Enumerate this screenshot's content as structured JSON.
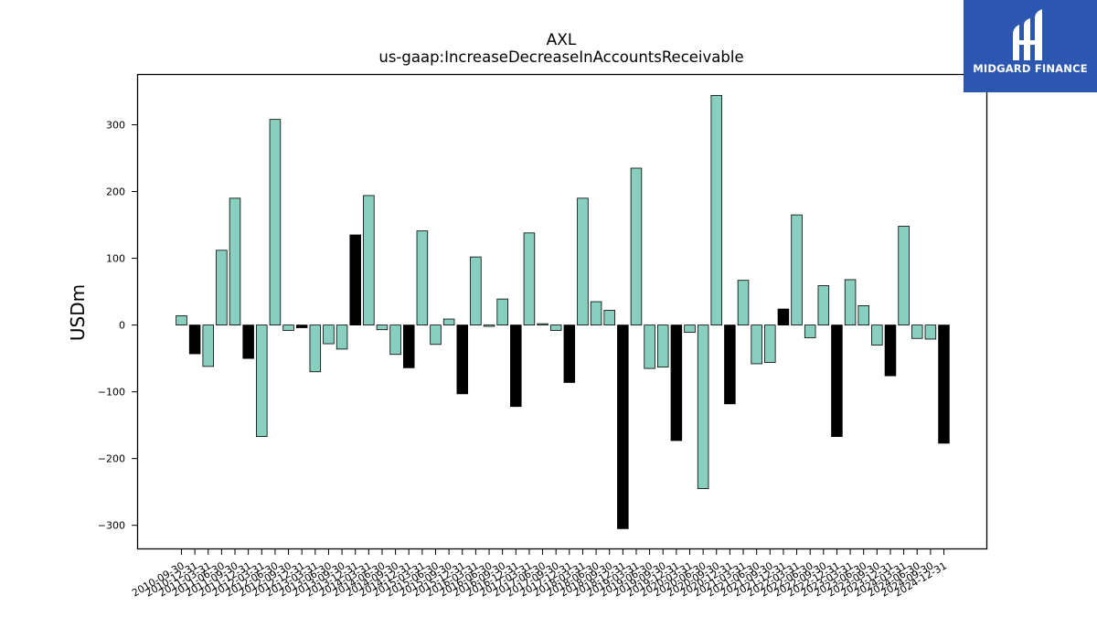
{
  "brand": {
    "name": "MIDGARD FINANCE",
    "bg_color": "#2c57b0"
  },
  "chart_data": {
    "type": "bar",
    "title": "AXL",
    "subtitle": "us-gaap:IncreaseDecreaseInAccountsReceivable",
    "ylabel": "USDm",
    "xlabel": "",
    "ylim": [
      -336,
      376
    ],
    "yticks": [
      -300,
      -200,
      -100,
      0,
      100,
      200,
      300
    ],
    "colors": {
      "quarterly": "#88cfc0",
      "annual": "#000000"
    },
    "categories": [
      "2010-09-30",
      "2010-12-31",
      "2011-03-31",
      "2011-06-30",
      "2011-09-30",
      "2011-12-31",
      "2012-03-31",
      "2012-06-30",
      "2012-09-30",
      "2012-12-31",
      "2013-03-31",
      "2013-06-30",
      "2013-09-30",
      "2013-12-31",
      "2014-03-31",
      "2014-06-30",
      "2014-09-30",
      "2014-12-31",
      "2015-03-31",
      "2015-06-30",
      "2015-09-30",
      "2015-12-31",
      "2016-03-31",
      "2016-06-30",
      "2016-09-30",
      "2016-12-31",
      "2017-03-31",
      "2017-06-30",
      "2017-09-30",
      "2017-12-31",
      "2018-03-31",
      "2018-06-30",
      "2018-09-30",
      "2018-12-31",
      "2019-03-31",
      "2019-06-30",
      "2019-09-30",
      "2019-12-31",
      "2020-03-31",
      "2020-06-30",
      "2020-09-30",
      "2020-12-31",
      "2021-03-31",
      "2021-06-30",
      "2021-09-30",
      "2021-12-31",
      "2022-03-31",
      "2022-06-30",
      "2022-09-30",
      "2022-12-31",
      "2023-03-31",
      "2023-06-30",
      "2023-09-30",
      "2023-12-31",
      "2024-03-31",
      "2024-06-30",
      "2024-09-30",
      "2024-12-31"
    ],
    "values": [
      14,
      -43,
      -62,
      112,
      190,
      -50,
      -167,
      308,
      -8,
      -4,
      -70,
      -28,
      -36,
      135,
      194,
      -7,
      -44,
      -64,
      141,
      -29,
      9,
      -103,
      102,
      -2,
      39,
      -122,
      138,
      2,
      -8,
      -86,
      190,
      35,
      22,
      -305,
      235,
      -65,
      -63,
      -173,
      -11,
      -245,
      344,
      -118,
      67,
      -58,
      -56,
      24,
      165,
      -19,
      59,
      -167,
      68,
      29,
      -30,
      -76,
      148,
      -20,
      -21,
      -177
    ],
    "annual_flags": [
      false,
      true,
      false,
      false,
      false,
      true,
      false,
      false,
      false,
      true,
      false,
      false,
      false,
      true,
      false,
      false,
      false,
      true,
      false,
      false,
      false,
      true,
      false,
      false,
      false,
      true,
      false,
      false,
      false,
      true,
      false,
      false,
      false,
      true,
      false,
      false,
      false,
      true,
      false,
      false,
      false,
      true,
      false,
      false,
      false,
      true,
      false,
      false,
      false,
      true,
      false,
      false,
      false,
      true,
      false,
      false,
      false,
      true
    ]
  }
}
